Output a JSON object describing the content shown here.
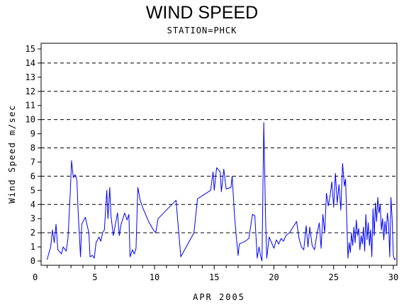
{
  "chart_data": {
    "type": "line",
    "title": "WIND SPEED",
    "subtitle": "STATION=PHCK",
    "xlabel": "APR 2005",
    "ylabel": "Wind Speed m/sec",
    "xlim": [
      0.5,
      30.3
    ],
    "ylim": [
      -0.3,
      15.4
    ],
    "x_ticks": [
      0,
      5,
      10,
      15,
      20,
      25,
      30
    ],
    "y_ticks": [
      0,
      1,
      2,
      3,
      4,
      5,
      6,
      7,
      8,
      9,
      10,
      11,
      12,
      13,
      14,
      15
    ],
    "reference_lines": [
      2,
      4,
      6,
      8,
      10,
      12,
      14
    ],
    "grid": "dashed horizontal reference lines",
    "legend": "none",
    "series_color": "#0000ff",
    "series": [
      {
        "values": [
          [
            1.0,
            0.1
          ],
          [
            1.3,
            1.0
          ],
          [
            1.45,
            2.2
          ],
          [
            1.6,
            1.3
          ],
          [
            1.75,
            2.6
          ],
          [
            1.9,
            0.8
          ],
          [
            2.2,
            0.5
          ],
          [
            2.35,
            1.0
          ],
          [
            2.6,
            0.7
          ],
          [
            2.75,
            1.6
          ],
          [
            2.95,
            5.0
          ],
          [
            3.05,
            7.1
          ],
          [
            3.2,
            5.9
          ],
          [
            3.35,
            6.1
          ],
          [
            3.5,
            5.7
          ],
          [
            3.6,
            3.5
          ],
          [
            3.8,
            0.3
          ],
          [
            3.9,
            2.6
          ],
          [
            4.2,
            3.1
          ],
          [
            4.5,
            2.0
          ],
          [
            4.6,
            0.3
          ],
          [
            4.8,
            0.4
          ],
          [
            4.95,
            0.2
          ],
          [
            5.1,
            1.3
          ],
          [
            5.35,
            1.7
          ],
          [
            5.5,
            1.4
          ],
          [
            5.65,
            2.0
          ],
          [
            5.8,
            2.2
          ],
          [
            6.0,
            5.0
          ],
          [
            6.1,
            3.0
          ],
          [
            6.25,
            5.2
          ],
          [
            6.35,
            3.2
          ],
          [
            6.55,
            1.8
          ],
          [
            6.7,
            2.5
          ],
          [
            6.9,
            3.4
          ],
          [
            7.05,
            1.8
          ],
          [
            7.2,
            2.6
          ],
          [
            7.5,
            3.4
          ],
          [
            7.7,
            2.9
          ],
          [
            7.85,
            3.3
          ],
          [
            7.95,
            0.3
          ],
          [
            8.15,
            0.8
          ],
          [
            8.3,
            0.5
          ],
          [
            8.45,
            0.9
          ],
          [
            8.6,
            5.2
          ],
          [
            8.8,
            4.3
          ],
          [
            9.0,
            3.8
          ],
          [
            9.5,
            2.8
          ],
          [
            9.9,
            2.2
          ],
          [
            10.1,
            2.0
          ],
          [
            10.3,
            3.0
          ],
          [
            11.8,
            4.3
          ],
          [
            12.2,
            0.3
          ],
          [
            13.3,
            2.0
          ],
          [
            13.6,
            4.4
          ],
          [
            14.7,
            5.0
          ],
          [
            14.9,
            6.3
          ],
          [
            15.0,
            5.0
          ],
          [
            15.2,
            6.6
          ],
          [
            15.5,
            6.3
          ],
          [
            15.6,
            4.9
          ],
          [
            15.8,
            6.5
          ],
          [
            16.0,
            5.1
          ],
          [
            16.4,
            5.2
          ],
          [
            16.5,
            6.0
          ],
          [
            16.7,
            3.2
          ],
          [
            16.85,
            1.7
          ],
          [
            17.0,
            0.4
          ],
          [
            17.1,
            1.2
          ],
          [
            17.6,
            1.4
          ],
          [
            17.9,
            1.6
          ],
          [
            18.2,
            3.3
          ],
          [
            18.4,
            3.2
          ],
          [
            18.6,
            0.2
          ],
          [
            18.75,
            1.0
          ],
          [
            18.9,
            0.3
          ],
          [
            19.0,
            0.0
          ],
          [
            19.15,
            9.8
          ],
          [
            19.3,
            3.0
          ],
          [
            19.4,
            0.2
          ],
          [
            19.6,
            1.7
          ],
          [
            20.0,
            0.9
          ],
          [
            20.2,
            1.5
          ],
          [
            20.4,
            1.2
          ],
          [
            20.6,
            1.6
          ],
          [
            20.8,
            1.4
          ],
          [
            21.0,
            1.8
          ],
          [
            21.3,
            2.0
          ],
          [
            21.6,
            2.4
          ],
          [
            21.9,
            2.8
          ],
          [
            22.1,
            1.6
          ],
          [
            22.3,
            1.0
          ],
          [
            22.5,
            0.8
          ],
          [
            22.7,
            2.5
          ],
          [
            22.85,
            1.0
          ],
          [
            23.0,
            2.4
          ],
          [
            23.2,
            1.1
          ],
          [
            23.4,
            0.8
          ],
          [
            23.6,
            1.9
          ],
          [
            23.8,
            2.7
          ],
          [
            23.95,
            0.9
          ],
          [
            24.1,
            3.3
          ],
          [
            24.25,
            2.0
          ],
          [
            24.4,
            4.8
          ],
          [
            24.55,
            3.9
          ],
          [
            24.7,
            4.6
          ],
          [
            24.85,
            5.6
          ],
          [
            25.0,
            3.8
          ],
          [
            25.15,
            6.2
          ],
          [
            25.3,
            4.1
          ],
          [
            25.45,
            5.4
          ],
          [
            25.6,
            3.6
          ],
          [
            25.75,
            6.9
          ],
          [
            25.9,
            5.3
          ],
          [
            26.0,
            5.8
          ],
          [
            26.1,
            2.9
          ],
          [
            26.2,
            0.2
          ],
          [
            26.3,
            1.3
          ],
          [
            26.4,
            0.6
          ],
          [
            26.5,
            2.0
          ],
          [
            26.6,
            1.1
          ],
          [
            26.7,
            2.4
          ],
          [
            26.8,
            1.3
          ],
          [
            26.9,
            2.9
          ],
          [
            27.0,
            1.8
          ],
          [
            27.1,
            2.3
          ],
          [
            27.2,
            0.8
          ],
          [
            27.3,
            1.8
          ],
          [
            27.4,
            1.2
          ],
          [
            27.5,
            2.4
          ],
          [
            27.6,
            0.7
          ],
          [
            27.7,
            3.3
          ],
          [
            27.8,
            1.5
          ],
          [
            27.9,
            2.7
          ],
          [
            28.0,
            1.1
          ],
          [
            28.1,
            2.2
          ],
          [
            28.2,
            0.3
          ],
          [
            28.3,
            3.7
          ],
          [
            28.4,
            1.8
          ],
          [
            28.5,
            4.1
          ],
          [
            28.6,
            2.8
          ],
          [
            28.7,
            4.5
          ],
          [
            28.8,
            3.4
          ],
          [
            28.9,
            4.0
          ],
          [
            29.0,
            2.2
          ],
          [
            29.1,
            3.0
          ],
          [
            29.2,
            1.5
          ],
          [
            29.3,
            2.8
          ],
          [
            29.4,
            1.9
          ],
          [
            29.5,
            3.4
          ],
          [
            29.6,
            2.7
          ],
          [
            29.7,
            0.3
          ],
          [
            29.8,
            4.5
          ],
          [
            29.9,
            3.0
          ],
          [
            30.0,
            0.4
          ],
          [
            30.1,
            0.1
          ],
          [
            30.2,
            0.2
          ]
        ]
      }
    ]
  }
}
